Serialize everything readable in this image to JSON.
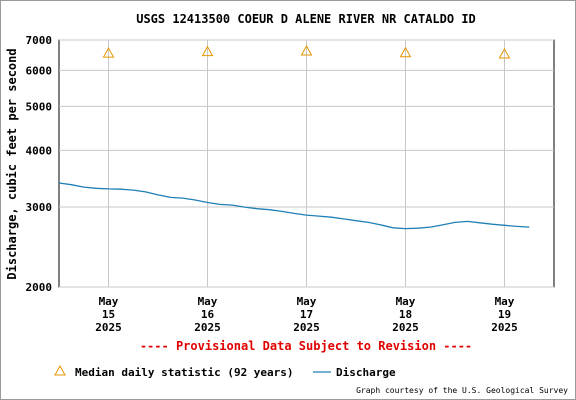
{
  "chart_data": {
    "type": "line",
    "title": "USGS 12413500 COEUR D ALENE RIVER NR CATALDO ID",
    "ylabel": "Discharge, cubic feet per second",
    "xlabel": "",
    "y_scale": "log",
    "ylim": [
      2000,
      7000
    ],
    "y_ticks": [
      2000,
      3000,
      4000,
      5000,
      6000,
      7000
    ],
    "y_tick_labels": [
      "2000",
      "3000",
      "4000",
      "5000",
      "6000",
      "7000"
    ],
    "xlim": [
      "2025-05-14 12:00",
      "2025-05-19 12:00"
    ],
    "x_ticks": [
      {
        "date": "2025-05-15",
        "label": [
          "May",
          "15",
          "2025"
        ]
      },
      {
        "date": "2025-05-16",
        "label": [
          "May",
          "16",
          "2025"
        ]
      },
      {
        "date": "2025-05-17",
        "label": [
          "May",
          "17",
          "2025"
        ]
      },
      {
        "date": "2025-05-18",
        "label": [
          "May",
          "18",
          "2025"
        ]
      },
      {
        "date": "2025-05-19",
        "label": [
          "May",
          "19",
          "2025"
        ]
      }
    ],
    "grid": true,
    "series": [
      {
        "name": "Discharge",
        "type": "line",
        "color": "#1f7fb6",
        "points": [
          [
            "2025-05-14 12:00",
            3390
          ],
          [
            "2025-05-14 15:00",
            3360
          ],
          [
            "2025-05-14 18:00",
            3320
          ],
          [
            "2025-05-14 21:00",
            3300
          ],
          [
            "2025-05-15 00:00",
            3290
          ],
          [
            "2025-05-15 03:00",
            3285
          ],
          [
            "2025-05-15 06:00",
            3270
          ],
          [
            "2025-05-15 09:00",
            3240
          ],
          [
            "2025-05-15 12:00",
            3190
          ],
          [
            "2025-05-15 15:00",
            3150
          ],
          [
            "2025-05-15 18:00",
            3140
          ],
          [
            "2025-05-15 21:00",
            3110
          ],
          [
            "2025-05-16 00:00",
            3070
          ],
          [
            "2025-05-16 03:00",
            3040
          ],
          [
            "2025-05-16 06:00",
            3030
          ],
          [
            "2025-05-16 09:00",
            3000
          ],
          [
            "2025-05-16 12:00",
            2975
          ],
          [
            "2025-05-16 15:00",
            2960
          ],
          [
            "2025-05-16 18:00",
            2935
          ],
          [
            "2025-05-16 21:00",
            2905
          ],
          [
            "2025-05-17 00:00",
            2880
          ],
          [
            "2025-05-17 03:00",
            2865
          ],
          [
            "2025-05-17 06:00",
            2850
          ],
          [
            "2025-05-17 09:00",
            2825
          ],
          [
            "2025-05-17 12:00",
            2800
          ],
          [
            "2025-05-17 15:00",
            2775
          ],
          [
            "2025-05-17 18:00",
            2740
          ],
          [
            "2025-05-17 21:00",
            2700
          ],
          [
            "2025-05-18 00:00",
            2690
          ],
          [
            "2025-05-18 03:00",
            2695
          ],
          [
            "2025-05-18 06:00",
            2710
          ],
          [
            "2025-05-18 09:00",
            2740
          ],
          [
            "2025-05-18 12:00",
            2775
          ],
          [
            "2025-05-18 15:00",
            2790
          ],
          [
            "2025-05-18 18:00",
            2770
          ],
          [
            "2025-05-18 21:00",
            2750
          ],
          [
            "2025-05-19 00:00",
            2735
          ],
          [
            "2025-05-19 03:00",
            2720
          ],
          [
            "2025-05-19 06:00",
            2710
          ]
        ]
      },
      {
        "name": "Median daily statistic (92 years)",
        "type": "scatter",
        "marker": "triangle",
        "color": "#e69500",
        "points": [
          [
            "2025-05-15 00:00",
            6550
          ],
          [
            "2025-05-16 00:00",
            6600
          ],
          [
            "2025-05-17 00:00",
            6620
          ],
          [
            "2025-05-18 00:00",
            6560
          ],
          [
            "2025-05-19 00:00",
            6520
          ]
        ]
      }
    ],
    "legend": {
      "placement": "bottom",
      "items": [
        {
          "label": "Median daily statistic (92 years)",
          "marker": "triangle",
          "color": "#e69500"
        },
        {
          "label": "Discharge",
          "marker": "line",
          "color": "#1f7fb6"
        }
      ]
    },
    "annotations": {
      "provisional": "---- Provisional Data Subject to Revision ----",
      "provisional_color": "#e00000",
      "credit": "Graph courtesy of the U.S. Geological Survey"
    }
  }
}
